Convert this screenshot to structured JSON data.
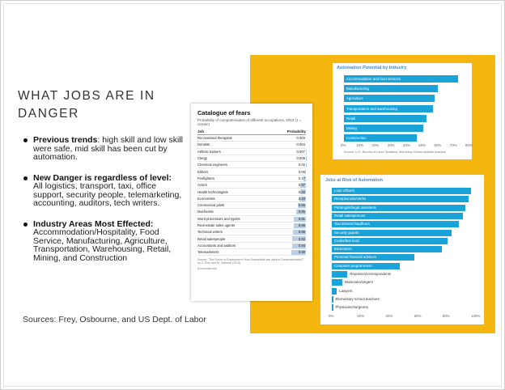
{
  "slide": {
    "title": "WHAT JOBS ARE IN DANGER",
    "bullets": [
      {
        "heading": "Previous trends",
        "text": ": high skill and low skill were safe, mid skill has been cut by automation."
      },
      {
        "heading": "New Danger is regardless of level:",
        "text": "All logistics, transport, taxi, office support, security people, telemarketing, accounting, auditors, tech writers."
      },
      {
        "heading": "Industry Areas Most Effected:",
        "text": "Accommodation/Hospitality, Food Service, Manufacturing, Agriculture, Transportation, Warehousing, Retail, Mining, and Construction"
      }
    ],
    "sources": "Sources: Frey, Osbourne, and US Dept. of Labor"
  },
  "catalog": {
    "title": "Catalogue of fears",
    "subtitle": "Probability of computerisation of different occupations, 2013 (1 = certain)",
    "col_job": "Job",
    "col_prob": "Probability",
    "rows": [
      {
        "job": "Recreational therapists",
        "prob": "0.003",
        "value": 0.003
      },
      {
        "job": "Dentists",
        "prob": "0.004",
        "value": 0.004
      },
      {
        "job": "Athletic trainers",
        "prob": "0.007",
        "value": 0.007
      },
      {
        "job": "Clergy",
        "prob": "0.008",
        "value": 0.008
      },
      {
        "job": "Chemical engineers",
        "prob": "0.02",
        "value": 0.02
      },
      {
        "job": "Editors",
        "prob": "0.06",
        "value": 0.06
      },
      {
        "job": "Firefighters",
        "prob": "0.17",
        "value": 0.17
      },
      {
        "job": "Actors",
        "prob": "0.37",
        "value": 0.37
      },
      {
        "job": "Health technologists",
        "prob": "0.40",
        "value": 0.4
      },
      {
        "job": "Economists",
        "prob": "0.43",
        "value": 0.43
      },
      {
        "job": "Commercial pilots",
        "prob": "0.55",
        "value": 0.55
      },
      {
        "job": "Machinists",
        "prob": "0.65",
        "value": 0.65
      },
      {
        "job": "Word processors and typists",
        "prob": "0.81",
        "value": 0.81
      },
      {
        "job": "Real-estate sales agents",
        "prob": "0.86",
        "value": 0.86
      },
      {
        "job": "Technical writers",
        "prob": "0.89",
        "value": 0.89
      },
      {
        "job": "Retail salespeople",
        "prob": "0.92",
        "value": 0.92
      },
      {
        "job": "Accountants and auditors",
        "prob": "0.94",
        "value": 0.94
      },
      {
        "job": "Telemarketers",
        "prob": "0.99",
        "value": 0.99
      }
    ],
    "footnote": "Source: \"The Future of Employment: How Susceptible are Jobs to Computerisation?\" by C. Frey and M. Osborne (2013)",
    "brand": "Economist.com"
  },
  "chart_data": [
    {
      "type": "bar",
      "title": "Automation Potential by Industry",
      "categories": [
        "Accommodation and food services",
        "Manufacturing",
        "Agriculture",
        "Transportation and warehousing",
        "Retail",
        "Mining",
        "Construction"
      ],
      "values": [
        73,
        60,
        58,
        57,
        53,
        51,
        47
      ],
      "xticks": [
        "0%",
        "10%",
        "20%",
        "30%",
        "40%",
        "50%",
        "60%",
        "70%",
        "80%"
      ],
      "xlim": [
        0,
        80
      ],
      "source": "Source: U.S. Bureau of Labor Statistics, McKinsey Global Institute analysis",
      "color": "#1aa3d9"
    },
    {
      "type": "bar",
      "title": "Jobs at Risk of Automation",
      "categories": [
        "Loan officers",
        "Receptionists/clerks",
        "Paralegals/legal assistants",
        "Retail salespersons",
        "Taxi drivers/chauffeurs",
        "Security guards",
        "Cooks/fast food",
        "Bartenders",
        "Personal financial advisors",
        "Computer programmers",
        "Reporters/correspondents",
        "Musicians/singers",
        "Lawyers",
        "Elementary school teachers",
        "Physicians/surgeons"
      ],
      "values": [
        98,
        96,
        94,
        92,
        89,
        84,
        81,
        77,
        58,
        48,
        11,
        7.4,
        3.5,
        0.4,
        0.4
      ],
      "xticks": [
        "0%",
        "20%",
        "40%",
        "60%",
        "80%",
        "100%"
      ],
      "xlim": [
        0,
        100
      ],
      "color": "#1aa3d9"
    }
  ]
}
